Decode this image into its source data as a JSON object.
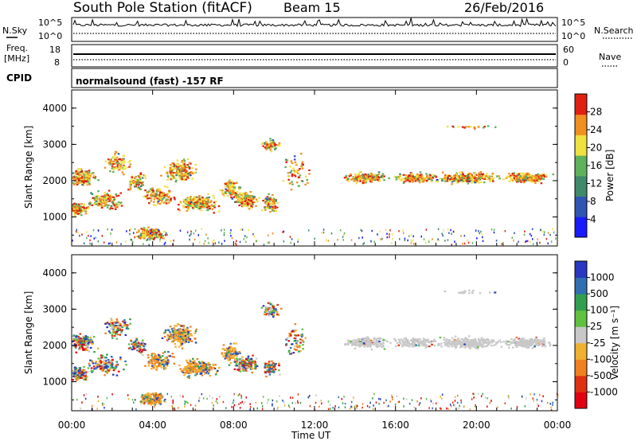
{
  "header": {
    "title": "South Pole Station (fitACF)",
    "beam": "Beam 15",
    "date": "26/Feb/2016"
  },
  "top_panels": {
    "nsky_label": "N.Sky",
    "nsky_ticks": [
      "10^5",
      "10^0"
    ],
    "nsearch_label": "N.Search",
    "nsearch_ticks": [
      "10^5",
      "10^0"
    ],
    "freq_label": "Freq.",
    "freq_unit": "[MHz]",
    "freq_ticks": [
      "18",
      "8"
    ],
    "nave_label": "Nave",
    "nave_ticks": [
      "60",
      "0"
    ],
    "cpid_label": "CPID",
    "cpid_text": "normalsound (fast) -157 RF"
  },
  "chart_data": [
    {
      "type": "heatmap",
      "title": "",
      "ylabel": "Slant Range [km]",
      "ylim": [
        200,
        4500
      ],
      "yticks": [
        "1000",
        "2000",
        "3000",
        "4000"
      ],
      "xlim": [
        "00:00",
        "24:00"
      ],
      "colorbar": {
        "label": "Power [dB]",
        "ticks": [
          "4",
          "8",
          "12",
          "16",
          "20",
          "24",
          "28"
        ],
        "colors": [
          "#1a1aff",
          "#2f55b5",
          "#3f8a6a",
          "#5fb15a",
          "#f0e040",
          "#f09020",
          "#e02010"
        ]
      }
    },
    {
      "type": "heatmap",
      "title": "",
      "xlabel": "Time UT",
      "ylabel": "Slant Range [km]",
      "ylim": [
        200,
        4500
      ],
      "yticks": [
        "1000",
        "2000",
        "3000",
        "4000"
      ],
      "xlim": [
        "00:00",
        "24:00"
      ],
      "xticks": [
        "00:00",
        "04:00",
        "08:00",
        "12:00",
        "16:00",
        "20:00",
        "00:00"
      ],
      "colorbar": {
        "label": "Velocity [m s⁻¹]",
        "ticks": [
          "1000",
          "500",
          "100",
          "25",
          "-25",
          "-100",
          "-500",
          "-1000"
        ],
        "colors": [
          "#2838c0",
          "#3070b0",
          "#30a050",
          "#60c040",
          "#c8c8c8",
          "#f0b030",
          "#f08020",
          "#e03010",
          "#e00010"
        ]
      }
    }
  ]
}
